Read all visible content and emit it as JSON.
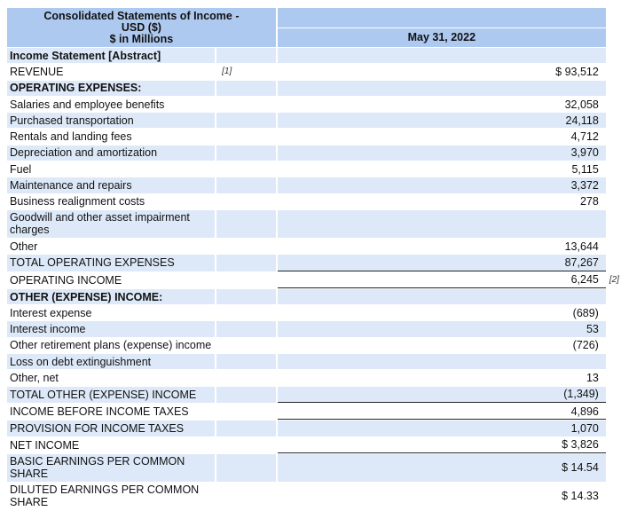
{
  "header": {
    "title_line1": "Consolidated Statements of Income -",
    "title_line2": "USD ($)",
    "title_line3": "$ in Millions",
    "period": "May 31, 2022"
  },
  "rows": [
    {
      "label": "Income Statement [Abstract]",
      "value": "",
      "bold": true
    },
    {
      "label": "REVENUE",
      "note": "[1]",
      "value": "$ 93,512"
    },
    {
      "label": "OPERATING EXPENSES:",
      "value": "",
      "bold": true
    },
    {
      "label": "Salaries and employee benefits",
      "value": "32,058"
    },
    {
      "label": "Purchased transportation",
      "value": "24,118"
    },
    {
      "label": "Rentals and landing fees",
      "value": "4,712"
    },
    {
      "label": "Depreciation and amortization",
      "value": "3,970"
    },
    {
      "label": "Fuel",
      "value": "5,115"
    },
    {
      "label": "Maintenance and repairs",
      "value": "3,372"
    },
    {
      "label": "Business realignment costs",
      "value": "278"
    },
    {
      "label": "Goodwill and other asset impairment charges",
      "value": "",
      "tall": true
    },
    {
      "label": "Other",
      "value": "13,644"
    },
    {
      "label": "TOTAL OPERATING EXPENSES",
      "value": "87,267",
      "underline": true
    },
    {
      "label": "OPERATING INCOME",
      "value": "6,245",
      "value_note": "[2]",
      "underline": true
    },
    {
      "label": "OTHER (EXPENSE) INCOME:",
      "value": "",
      "bold": true
    },
    {
      "label": "Interest expense",
      "value": "(689)"
    },
    {
      "label": "Interest income",
      "value": "53"
    },
    {
      "label": "Other retirement plans (expense) income",
      "value": "(726)"
    },
    {
      "label": "Loss on debt extinguishment",
      "value": ""
    },
    {
      "label": "Other, net",
      "value": "13"
    },
    {
      "label": "TOTAL OTHER (EXPENSE) INCOME",
      "value": "(1,349)",
      "underline": true
    },
    {
      "label": "INCOME BEFORE INCOME TAXES",
      "value": "4,896",
      "underline": true
    },
    {
      "label": "PROVISION FOR INCOME TAXES",
      "value": "1,070"
    },
    {
      "label": "NET INCOME",
      "value": "$ 3,826",
      "underline": true
    },
    {
      "label": "BASIC EARNINGS PER COMMON SHARE",
      "value": "$ 14.54",
      "tall": true
    },
    {
      "label": "DILUTED EARNINGS PER COMMON SHARE",
      "value": "$ 14.33",
      "tall": true
    }
  ]
}
